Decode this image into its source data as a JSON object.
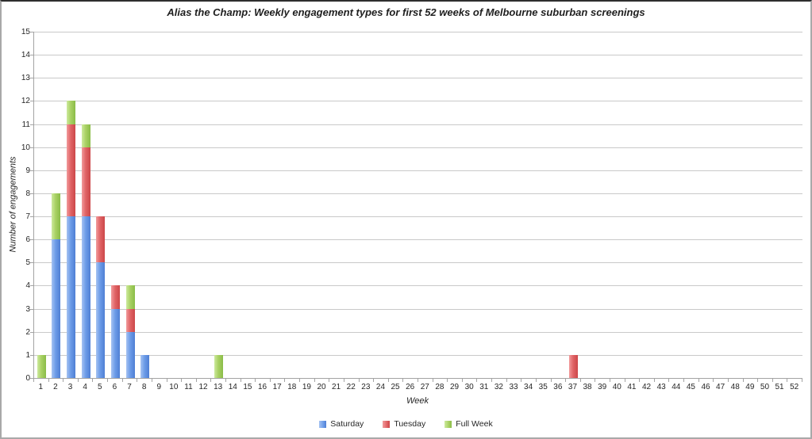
{
  "chart_data": {
    "type": "bar",
    "stacked": true,
    "title": "Alias the Champ: Weekly engagement types for first 52 weeks of Melbourne suburban screenings",
    "xlabel": "Week",
    "ylabel": "Number of engagements",
    "ylim": [
      0,
      15
    ],
    "ytick_step": 1,
    "grid": true,
    "legend_position": "bottom",
    "categories": [
      1,
      2,
      3,
      4,
      5,
      6,
      7,
      8,
      9,
      10,
      11,
      12,
      13,
      14,
      15,
      16,
      17,
      18,
      19,
      20,
      21,
      22,
      23,
      24,
      25,
      26,
      27,
      28,
      29,
      30,
      31,
      32,
      33,
      34,
      35,
      36,
      37,
      38,
      39,
      40,
      41,
      42,
      43,
      44,
      45,
      46,
      47,
      48,
      49,
      50,
      51,
      52
    ],
    "series": [
      {
        "name": "Saturday",
        "color": "#6d9ce8",
        "color_light": "#a6c3f2",
        "color_dark": "#4f7fd4",
        "values": [
          0,
          6,
          7,
          7,
          5,
          3,
          2,
          1,
          0,
          0,
          0,
          0,
          0,
          0,
          0,
          0,
          0,
          0,
          0,
          0,
          0,
          0,
          0,
          0,
          0,
          0,
          0,
          0,
          0,
          0,
          0,
          0,
          0,
          0,
          0,
          0,
          0,
          0,
          0,
          0,
          0,
          0,
          0,
          0,
          0,
          0,
          0,
          0,
          0,
          0,
          0,
          0
        ]
      },
      {
        "name": "Tuesday",
        "color": "#e06466",
        "color_light": "#f29b9c",
        "color_dark": "#cc4749",
        "values": [
          0,
          0,
          4,
          3,
          2,
          1,
          1,
          0,
          0,
          0,
          0,
          0,
          0,
          0,
          0,
          0,
          0,
          0,
          0,
          0,
          0,
          0,
          0,
          0,
          0,
          0,
          0,
          0,
          0,
          0,
          0,
          0,
          0,
          0,
          0,
          0,
          1,
          0,
          0,
          0,
          0,
          0,
          0,
          0,
          0,
          0,
          0,
          0,
          0,
          0,
          0,
          0
        ]
      },
      {
        "name": "Full Week",
        "color": "#a9d164",
        "color_light": "#cdea9e",
        "color_dark": "#8abc48",
        "values": [
          1,
          2,
          1,
          1,
          0,
          0,
          1,
          0,
          0,
          0,
          0,
          0,
          1,
          0,
          0,
          0,
          0,
          0,
          0,
          0,
          0,
          0,
          0,
          0,
          0,
          0,
          0,
          0,
          0,
          0,
          0,
          0,
          0,
          0,
          0,
          0,
          0,
          0,
          0,
          0,
          0,
          0,
          0,
          0,
          0,
          0,
          0,
          0,
          0,
          0,
          0,
          0
        ]
      }
    ],
    "colors": {
      "gridline": "#c9c9c9",
      "axis": "#a3a3a3",
      "text": "#262626"
    }
  }
}
